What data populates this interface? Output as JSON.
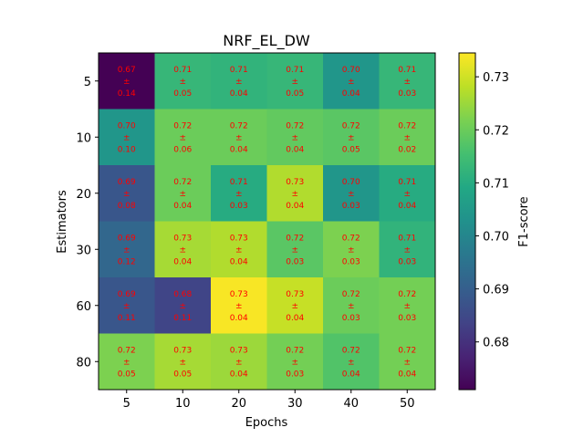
{
  "chart_data": {
    "type": "heatmap",
    "title": "NRF_EL_DW",
    "xlabel": "Epochs",
    "ylabel": "Estimators",
    "x_categories": [
      "5",
      "10",
      "20",
      "30",
      "40",
      "50"
    ],
    "y_categories": [
      "5",
      "10",
      "20",
      "30",
      "60",
      "80"
    ],
    "values": [
      [
        0.671,
        0.713,
        0.712,
        0.713,
        0.704,
        0.713
      ],
      [
        0.704,
        0.72,
        0.72,
        0.719,
        0.718,
        0.72
      ],
      [
        0.688,
        0.72,
        0.71,
        0.727,
        0.704,
        0.71
      ],
      [
        0.692,
        0.726,
        0.727,
        0.718,
        0.722,
        0.712
      ],
      [
        0.688,
        0.684,
        0.734,
        0.729,
        0.72,
        0.721
      ],
      [
        0.722,
        0.726,
        0.725,
        0.721,
        0.717,
        0.721
      ]
    ],
    "cell_labels": [
      [
        [
          "0.67",
          "±",
          "0.14"
        ],
        [
          "0.71",
          "±",
          "0.05"
        ],
        [
          "0.71",
          "±",
          "0.04"
        ],
        [
          "0.71",
          "±",
          "0.05"
        ],
        [
          "0.70",
          "±",
          "0.04"
        ],
        [
          "0.71",
          "±",
          "0.03"
        ]
      ],
      [
        [
          "0.70",
          "±",
          "0.10"
        ],
        [
          "0.72",
          "±",
          "0.06"
        ],
        [
          "0.72",
          "±",
          "0.04"
        ],
        [
          "0.72",
          "±",
          "0.04"
        ],
        [
          "0.72",
          "±",
          "0.05"
        ],
        [
          "0.72",
          "±",
          "0.02"
        ]
      ],
      [
        [
          "0.69",
          "±",
          "0.08"
        ],
        [
          "0.72",
          "±",
          "0.04"
        ],
        [
          "0.71",
          "±",
          "0.03"
        ],
        [
          "0.73",
          "±",
          "0.04"
        ],
        [
          "0.70",
          "±",
          "0.03"
        ],
        [
          "0.71",
          "±",
          "0.04"
        ]
      ],
      [
        [
          "0.69",
          "±",
          "0.12"
        ],
        [
          "0.73",
          "±",
          "0.04"
        ],
        [
          "0.73",
          "±",
          "0.04"
        ],
        [
          "0.72",
          "±",
          "0.03"
        ],
        [
          "0.72",
          "±",
          "0.03"
        ],
        [
          "0.71",
          "±",
          "0.03"
        ]
      ],
      [
        [
          "0.69",
          "±",
          "0.11"
        ],
        [
          "0.68",
          "±",
          "0.11"
        ],
        [
          "0.73",
          "±",
          "0.04"
        ],
        [
          "0.73",
          "±",
          "0.04"
        ],
        [
          "0.72",
          "±",
          "0.03"
        ],
        [
          "0.72",
          "±",
          "0.03"
        ]
      ],
      [
        [
          "0.72",
          "±",
          "0.05"
        ],
        [
          "0.73",
          "±",
          "0.05"
        ],
        [
          "0.73",
          "±",
          "0.04"
        ],
        [
          "0.72",
          "±",
          "0.03"
        ],
        [
          "0.72",
          "±",
          "0.04"
        ],
        [
          "0.72",
          "±",
          "0.04"
        ]
      ]
    ],
    "colorbar": {
      "label": "F1-score",
      "range": [
        0.671,
        0.7345
      ],
      "ticks": [
        0.68,
        0.69,
        0.7,
        0.71,
        0.72,
        0.73
      ],
      "tick_labels": [
        "0.68",
        "0.69",
        "0.70",
        "0.71",
        "0.72",
        "0.73"
      ],
      "colormap": "viridis"
    },
    "annotation_color": "#ff0000"
  }
}
